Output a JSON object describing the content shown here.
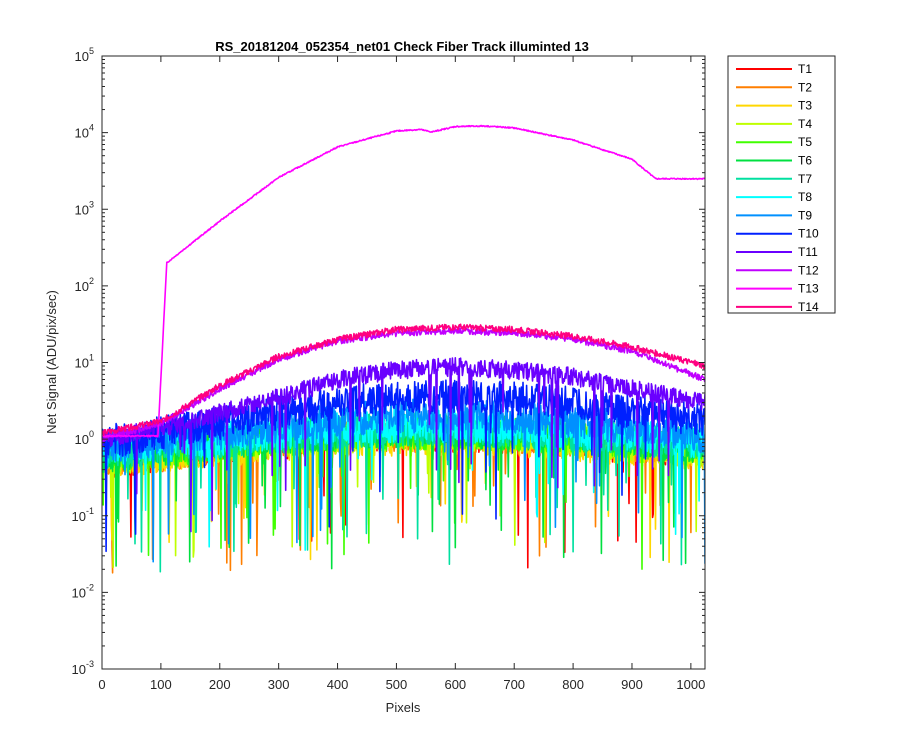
{
  "chart_data": {
    "type": "line",
    "title": "RS_20181204_052354_net01   Check Fiber     Track illuminted 13",
    "xlabel": "Pixels",
    "ylabel": "Net Signal (ADU/pix/sec)",
    "xlim": [
      0,
      1024
    ],
    "ylim": [
      0.001,
      100000
    ],
    "yscale": "log",
    "grid": false,
    "legend_position": "outside-top-right",
    "x_ticks": [
      0,
      100,
      200,
      300,
      400,
      500,
      600,
      700,
      800,
      900,
      1000
    ],
    "x_tick_labels": [
      "0",
      "100",
      "200",
      "300",
      "400",
      "500",
      "600",
      "700",
      "800",
      "900",
      "1000"
    ],
    "y_ticks": [
      0.001,
      0.01,
      0.1,
      1,
      10,
      100,
      1000,
      10000,
      100000
    ],
    "y_tick_labels": [
      {
        "base": "10",
        "exp": "-3"
      },
      {
        "base": "10",
        "exp": "-2"
      },
      {
        "base": "10",
        "exp": "-1"
      },
      {
        "base": "10",
        "exp": "0"
      },
      {
        "base": "10",
        "exp": "1"
      },
      {
        "base": "10",
        "exp": "2"
      },
      {
        "base": "10",
        "exp": "3"
      },
      {
        "base": "10",
        "exp": "4"
      },
      {
        "base": "10",
        "exp": "5"
      }
    ],
    "series": [
      {
        "name": "T1",
        "color": "#ff0000",
        "x": [
          0,
          100,
          200,
          300,
          400,
          500,
          600,
          700,
          800,
          900,
          1024
        ],
        "y": [
          0.5,
          0.6,
          0.75,
          0.9,
          1.0,
          1.1,
          1.1,
          1.0,
          0.9,
          0.8,
          0.7
        ]
      },
      {
        "name": "T2",
        "color": "#ff7f00",
        "x": [
          0,
          100,
          200,
          300,
          400,
          500,
          600,
          700,
          800,
          900,
          1024
        ],
        "y": [
          0.55,
          0.65,
          0.8,
          0.95,
          1.05,
          1.1,
          1.1,
          1.05,
          0.95,
          0.85,
          0.7
        ]
      },
      {
        "name": "T3",
        "color": "#ffd700",
        "x": [
          0,
          100,
          200,
          300,
          400,
          500,
          600,
          700,
          800,
          900,
          1024
        ],
        "y": [
          0.5,
          0.6,
          0.7,
          0.85,
          0.95,
          1.0,
          1.0,
          0.95,
          0.85,
          0.75,
          0.65
        ]
      },
      {
        "name": "T4",
        "color": "#bfff00",
        "x": [
          0,
          100,
          200,
          300,
          400,
          500,
          600,
          700,
          800,
          900,
          1024
        ],
        "y": [
          0.55,
          0.65,
          0.8,
          0.95,
          1.05,
          1.15,
          1.15,
          1.1,
          1.0,
          0.85,
          0.7
        ]
      },
      {
        "name": "T5",
        "color": "#40ff00",
        "x": [
          0,
          100,
          200,
          300,
          400,
          500,
          600,
          700,
          800,
          900,
          1024
        ],
        "y": [
          0.6,
          0.7,
          0.85,
          1.0,
          1.1,
          1.2,
          1.2,
          1.15,
          1.05,
          0.9,
          0.75
        ]
      },
      {
        "name": "T6",
        "color": "#00e040",
        "x": [
          0,
          100,
          200,
          300,
          400,
          500,
          600,
          700,
          800,
          900,
          1024
        ],
        "y": [
          0.6,
          0.75,
          0.9,
          1.05,
          1.2,
          1.3,
          1.3,
          1.2,
          1.1,
          0.95,
          0.8
        ]
      },
      {
        "name": "T7",
        "color": "#00e0a0",
        "x": [
          0,
          100,
          200,
          300,
          400,
          500,
          600,
          700,
          800,
          900,
          1024
        ],
        "y": [
          0.65,
          0.8,
          0.95,
          1.1,
          1.25,
          1.35,
          1.35,
          1.25,
          1.15,
          1.0,
          0.85
        ]
      },
      {
        "name": "T8",
        "color": "#00ffff",
        "x": [
          0,
          100,
          200,
          300,
          400,
          500,
          600,
          700,
          800,
          900,
          1024
        ],
        "y": [
          0.7,
          0.85,
          1.0,
          1.2,
          1.4,
          1.5,
          1.5,
          1.4,
          1.25,
          1.1,
          0.9
        ]
      },
      {
        "name": "T9",
        "color": "#0090ff",
        "x": [
          0,
          100,
          200,
          300,
          400,
          500,
          600,
          700,
          800,
          900,
          1024
        ],
        "y": [
          0.8,
          1.0,
          1.2,
          1.5,
          1.8,
          2.0,
          2.0,
          1.9,
          1.7,
          1.4,
          1.1
        ]
      },
      {
        "name": "T10",
        "color": "#0020ff",
        "x": [
          0,
          100,
          200,
          300,
          400,
          500,
          600,
          700,
          800,
          900,
          1024
        ],
        "y": [
          0.9,
          1.2,
          1.6,
          2.2,
          3.0,
          3.5,
          3.6,
          3.4,
          2.9,
          2.3,
          1.7
        ]
      },
      {
        "name": "T11",
        "color": "#6a00ff",
        "x": [
          0,
          100,
          200,
          300,
          400,
          500,
          600,
          700,
          800,
          900,
          1024
        ],
        "y": [
          1.0,
          1.4,
          2.2,
          3.5,
          6.0,
          8.0,
          8.8,
          8.0,
          6.5,
          4.5,
          3.0
        ]
      },
      {
        "name": "T12",
        "color": "#c000ff",
        "x": [
          0,
          100,
          200,
          300,
          400,
          500,
          600,
          700,
          800,
          900,
          1024
        ],
        "y": [
          1.0,
          1.6,
          4.5,
          11,
          19,
          24,
          26,
          24,
          20,
          14,
          6
        ]
      },
      {
        "name": "T13",
        "color": "#ff00ff",
        "x": [
          0,
          95,
          110,
          200,
          300,
          400,
          500,
          540,
          560,
          600,
          650,
          700,
          800,
          900,
          940,
          1024
        ],
        "y": [
          1.1,
          1.1,
          200,
          700,
          2600,
          6500,
          10500,
          11000,
          10200,
          12000,
          12200,
          11500,
          8000,
          4500,
          2500,
          2500
        ]
      },
      {
        "name": "T14",
        "color": "#ff0080",
        "x": [
          0,
          100,
          200,
          300,
          400,
          500,
          600,
          700,
          800,
          900,
          1024
        ],
        "y": [
          1.2,
          1.7,
          5.0,
          12,
          20,
          27,
          29,
          27,
          22,
          16,
          9
        ]
      }
    ]
  }
}
